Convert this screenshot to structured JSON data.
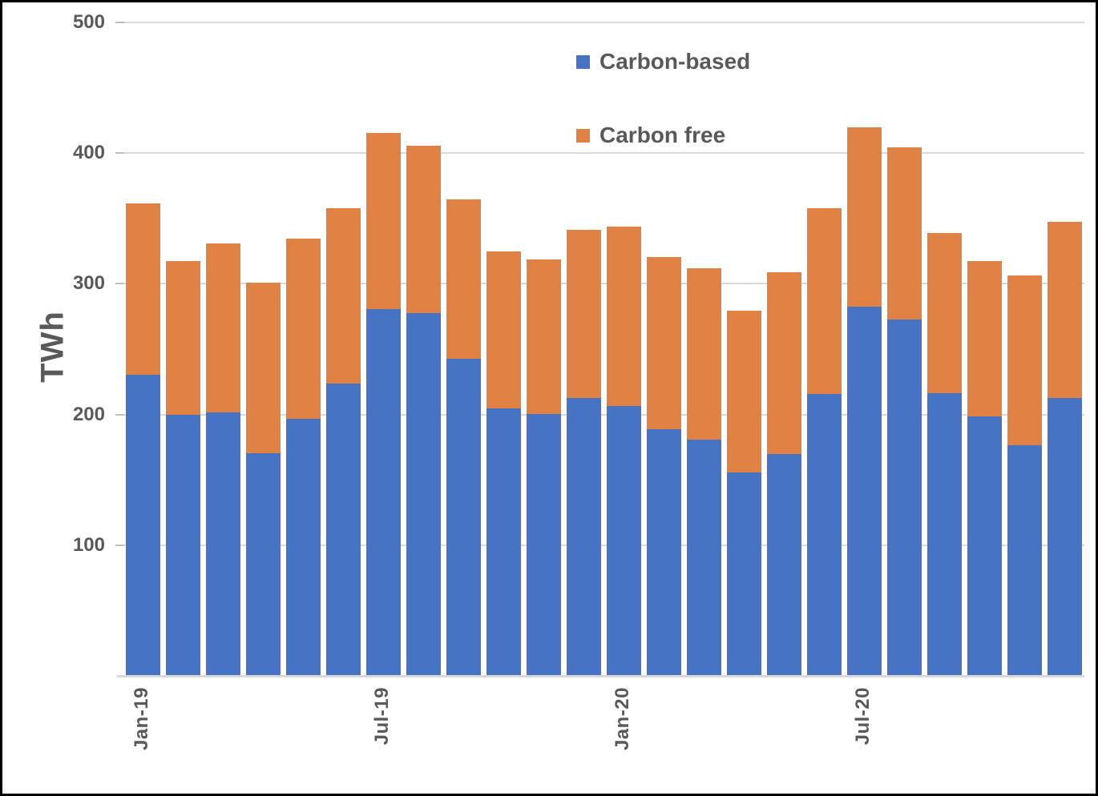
{
  "figure": {
    "ylabel": "TWh"
  },
  "chart_data": {
    "type": "bar",
    "stacked": true,
    "title": "",
    "xlabel": "",
    "ylabel": "TWh",
    "ylim": [
      0,
      500
    ],
    "yticks": [
      100,
      200,
      300,
      400,
      500
    ],
    "grid": true,
    "legend_position": "top-center-inside",
    "categories": [
      "Jan-19",
      "Feb-19",
      "Mar-19",
      "Apr-19",
      "May-19",
      "Jun-19",
      "Jul-19",
      "Aug-19",
      "Sep-19",
      "Oct-19",
      "Nov-19",
      "Dec-19",
      "Jan-20",
      "Feb-20",
      "Mar-20",
      "Apr-20",
      "May-20",
      "Jun-20",
      "Jul-20",
      "Aug-20",
      "Sep-20",
      "Oct-20",
      "Nov-20",
      "Dec-20"
    ],
    "x_tick_indices": [
      0,
      6,
      12,
      18
    ],
    "x_tick_labels": [
      "Jan-19",
      "Jul-19",
      "Jan-20",
      "Jul-20"
    ],
    "series": [
      {
        "name": "Carbon-based",
        "color": "#4773c4",
        "values": [
          230,
          199,
          201,
          170,
          196,
          223,
          280,
          277,
          242,
          204,
          200,
          212,
          206,
          188,
          180,
          155,
          169,
          215,
          282,
          272,
          216,
          198,
          176,
          212
        ]
      },
      {
        "name": "Carbon free",
        "color": "#e08243",
        "values": [
          131,
          118,
          129,
          130,
          138,
          134,
          135,
          128,
          122,
          120,
          118,
          129,
          137,
          132,
          131,
          124,
          139,
          142,
          137,
          132,
          122,
          119,
          130,
          135
        ]
      }
    ],
    "colors": {
      "text": "#595959",
      "gridline": "#d9d9d9",
      "tick": "#bfbfbf"
    }
  }
}
